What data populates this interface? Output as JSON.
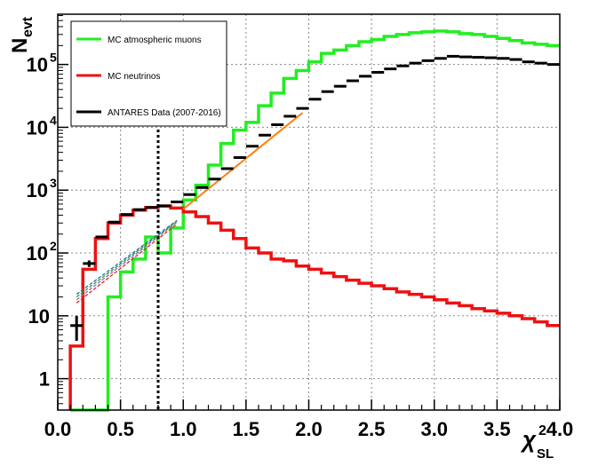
{
  "chart_data": {
    "type": "histogram",
    "ylabel": {
      "main": "N",
      "sub": "evt"
    },
    "xlabel": {
      "main": "χ",
      "sup": "2",
      "sub": "SL"
    },
    "xlim": [
      0.0,
      4.0
    ],
    "ylim_log10": [
      -0.5,
      5.8
    ],
    "y_scale": "log",
    "grid": true,
    "legend_position": "top-left",
    "x_ticks": [
      {
        "value": 0.0,
        "label": "0.0"
      },
      {
        "value": 0.5,
        "label": "0.5"
      },
      {
        "value": 1.0,
        "label": "1.0"
      },
      {
        "value": 1.5,
        "label": "1.5"
      },
      {
        "value": 2.0,
        "label": "2.0"
      },
      {
        "value": 2.5,
        "label": "2.5"
      },
      {
        "value": 3.0,
        "label": "3.0"
      },
      {
        "value": 3.5,
        "label": "3.5"
      },
      {
        "value": 4.0,
        "label": "4.0"
      }
    ],
    "y_ticks": [
      {
        "value": 1,
        "label": "1"
      },
      {
        "value": 10,
        "label": "10"
      },
      {
        "value": 100,
        "label": "10",
        "exp": "2"
      },
      {
        "value": 1000,
        "label": "10",
        "exp": "3"
      },
      {
        "value": 10000,
        "label": "10",
        "exp": "4"
      },
      {
        "value": 100000,
        "label": "10",
        "exp": "5"
      }
    ],
    "bin_edges_start": 0.1,
    "bin_width": 0.1,
    "vertical_cut_line": {
      "x": 0.8,
      "style": "dotted",
      "color": "#000000"
    },
    "series": [
      {
        "name": "MC atmospheric muons",
        "color": "#22ee22",
        "style": "step",
        "values": [
          0.3,
          0.3,
          0.3,
          20,
          50,
          80,
          180,
          100,
          250,
          700,
          1200,
          2500,
          5500,
          9000,
          12000,
          22000,
          35000,
          60000,
          80000,
          110000,
          150000,
          170000,
          200000,
          230000,
          250000,
          280000,
          300000,
          320000,
          330000,
          340000,
          330000,
          310000,
          300000,
          280000,
          260000,
          240000,
          220000,
          210000,
          200000
        ]
      },
      {
        "name": "MC neutrinos",
        "color": "#ee1111",
        "style": "step",
        "values": [
          3.3,
          55,
          170,
          300,
          400,
          480,
          530,
          560,
          520,
          450,
          380,
          300,
          230,
          170,
          120,
          100,
          80,
          75,
          62,
          55,
          48,
          42,
          37,
          33,
          30,
          27,
          24,
          22,
          20,
          18,
          16,
          14.5,
          13,
          12,
          11,
          10,
          9,
          8,
          7
        ]
      },
      {
        "name": "ANTARES Data (2007-2016)",
        "color": "#000000",
        "style": "points",
        "x": [
          0.15,
          0.25,
          0.35,
          0.45,
          0.55,
          0.65,
          0.75,
          0.85,
          0.95,
          1.05,
          1.15,
          1.25,
          1.35,
          1.45,
          1.55,
          1.65,
          1.75,
          1.85,
          1.95,
          2.05,
          2.15,
          2.25,
          2.35,
          2.45,
          2.55,
          2.65,
          2.75,
          2.85,
          2.95,
          3.05,
          3.15,
          3.25,
          3.35,
          3.45,
          3.55,
          3.65,
          3.75,
          3.85,
          3.95
        ],
        "values": [
          7,
          68,
          180,
          310,
          410,
          490,
          530,
          560,
          650,
          850,
          1100,
          1500,
          2200,
          3300,
          5000,
          7500,
          11000,
          15000,
          20000,
          28000,
          37000,
          45000,
          55000,
          65000,
          75000,
          85000,
          95000,
          105000,
          115000,
          125000,
          135000,
          132000,
          130000,
          128000,
          125000,
          120000,
          110000,
          105000,
          100000
        ],
        "y_error_low": [
          3,
          8,
          0,
          0,
          0,
          0,
          0,
          0,
          0,
          0,
          0,
          0,
          0,
          0,
          0,
          0,
          0,
          0,
          0,
          0,
          0,
          0,
          0,
          0,
          0,
          0,
          0,
          0,
          0,
          0,
          0,
          0,
          0,
          0,
          0,
          0,
          0,
          0,
          0
        ],
        "y_error_high": [
          3,
          8,
          0,
          0,
          0,
          0,
          0,
          0,
          0,
          0,
          0,
          0,
          0,
          0,
          0,
          0,
          0,
          0,
          0,
          0,
          0,
          0,
          0,
          0,
          0,
          0,
          0,
          0,
          0,
          0,
          0,
          0,
          0,
          0,
          0,
          0,
          0,
          0,
          0
        ]
      }
    ],
    "fit_lines": [
      {
        "color": "#ff7f0e",
        "style": "solid",
        "x": [
          1.0,
          1.95
        ],
        "y": [
          500,
          17000
        ]
      },
      {
        "color": "#1f77b4",
        "style": "dashed",
        "x": [
          0.15,
          0.95
        ],
        "y": [
          22,
          330
        ]
      },
      {
        "color": "#2ca02c",
        "style": "dashed",
        "x": [
          0.15,
          0.95
        ],
        "y": [
          20,
          320
        ]
      },
      {
        "color": "#9467bd",
        "style": "dashed",
        "x": [
          0.15,
          0.95
        ],
        "y": [
          18,
          310
        ]
      },
      {
        "color": "#d62728",
        "style": "dashed",
        "x": [
          0.15,
          0.95
        ],
        "y": [
          16,
          290
        ]
      }
    ],
    "legend": [
      {
        "label": "MC atmospheric muons",
        "color": "#22ee22"
      },
      {
        "label": "MC neutrinos",
        "color": "#ee1111"
      },
      {
        "label": "ANTARES Data (2007-2016)",
        "color": "#000000"
      }
    ]
  }
}
